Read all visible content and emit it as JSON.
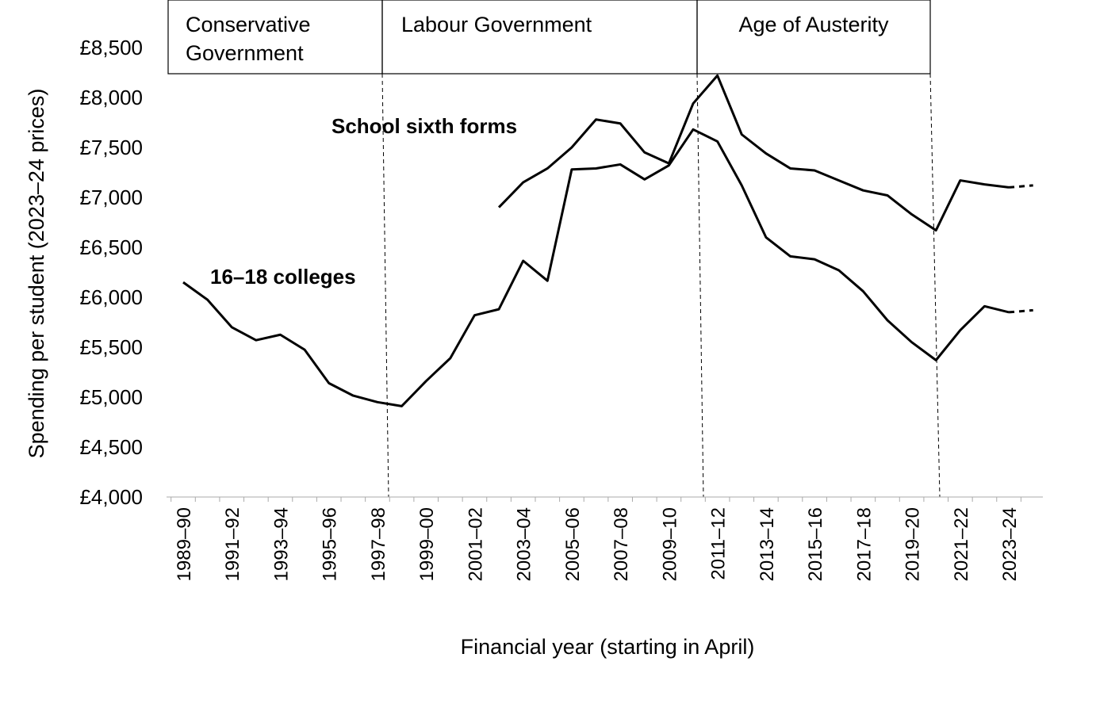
{
  "chart_data": {
    "type": "line",
    "periods": [
      "Conservative Government",
      "Labour Government",
      "Age of Austerity"
    ],
    "annotations": [
      "School sixth forms",
      "16–18 colleges"
    ],
    "x_label": "Financial year (starting in April)",
    "y_label": "Spending per student (2023–24 prices)",
    "categories": [
      "1989–90",
      null,
      "1991–92",
      null,
      "1993–94",
      null,
      "1995–96",
      null,
      "1997–98",
      null,
      "1999–00",
      null,
      "2001–02",
      null,
      "2003–04",
      null,
      "2005–06",
      null,
      "2007–08",
      null,
      "2009–10",
      null,
      "2011–12",
      null,
      "2013–14",
      null,
      "2015–16",
      null,
      "2017–18",
      null,
      "2019–20",
      null,
      "2021–22",
      null,
      "2023–24",
      null
    ],
    "series": [
      {
        "name": "School sixth forms",
        "color": "#000000",
        "dashed_from_index": 34,
        "values": [
          null,
          null,
          null,
          null,
          null,
          null,
          null,
          null,
          null,
          null,
          null,
          null,
          null,
          6900,
          7150,
          7290,
          7500,
          7780,
          7740,
          7450,
          7340,
          7940,
          8220,
          7630,
          7440,
          7290,
          7270,
          7170,
          7070,
          7020,
          6830,
          6670,
          7170,
          7130,
          7100,
          7120
        ]
      },
      {
        "name": "16–18 colleges",
        "color": "#000000",
        "dashed_from_index": 34,
        "values": [
          6150,
          5975,
          5700,
          5570,
          5625,
          5475,
          5140,
          5015,
          4950,
          4910,
          5160,
          5390,
          5820,
          5880,
          6365,
          6165,
          7280,
          7290,
          7330,
          7180,
          7320,
          7680,
          7560,
          7120,
          6600,
          6410,
          6380,
          6270,
          6060,
          5770,
          5550,
          5370,
          5670,
          5910,
          5850,
          5870
        ]
      }
    ],
    "ylim": [
      4000,
      8500
    ],
    "yticks": [
      {
        "value": 4000,
        "label": "£4,000"
      },
      {
        "value": 4500,
        "label": "£4,500"
      },
      {
        "value": 5000,
        "label": "£5,000"
      },
      {
        "value": 5500,
        "label": "£5,500"
      },
      {
        "value": 6000,
        "label": "£6,000"
      },
      {
        "value": 6500,
        "label": "£6,500"
      },
      {
        "value": 7000,
        "label": "£7,000"
      },
      {
        "value": 7500,
        "label": "£7,500"
      },
      {
        "value": 8000,
        "label": "£8,000"
      },
      {
        "value": 8500,
        "label": "£8,500"
      }
    ],
    "grid": false
  }
}
